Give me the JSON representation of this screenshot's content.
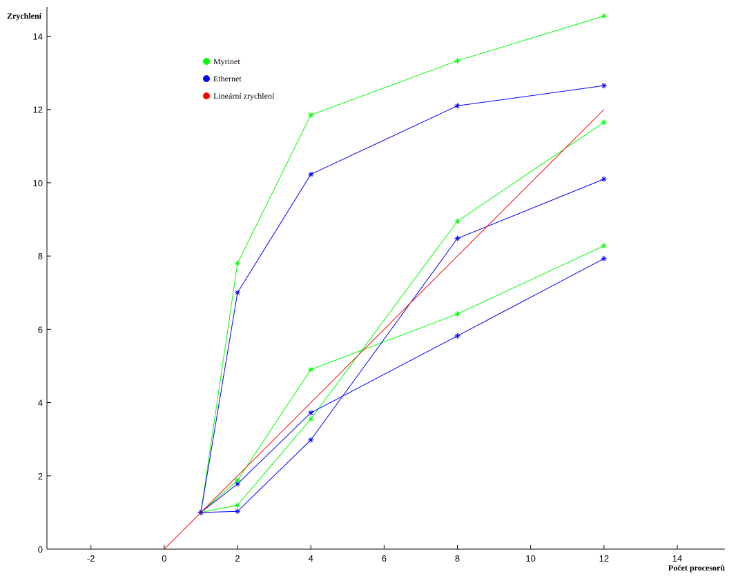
{
  "chart_data": {
    "type": "line",
    "ylabel": "Zrychlení",
    "xlabel": "Počet procesorů",
    "xlim": [
      -3.2,
      15.3
    ],
    "ylim": [
      0,
      14.8
    ],
    "xticks": [
      -2,
      0,
      2,
      4,
      6,
      8,
      10,
      12,
      14
    ],
    "yticks": [
      0,
      2,
      4,
      6,
      8,
      10,
      12,
      14
    ],
    "series": [
      {
        "name": "Myrinet",
        "color": "#00ff00",
        "marker": true,
        "x": [
          1,
          2,
          4,
          8,
          12
        ],
        "lines": [
          [
            1,
            7.8,
            11.85,
            13.33,
            14.55
          ],
          [
            1,
            1.2,
            3.55,
            8.95,
            11.65
          ],
          [
            1,
            1.88,
            4.9,
            6.42,
            8.28
          ]
        ]
      },
      {
        "name": "Ethernet",
        "color": "#0000ff",
        "marker": true,
        "x": [
          1,
          2,
          4,
          8,
          12
        ],
        "lines": [
          [
            1,
            7.0,
            10.23,
            12.1,
            12.65
          ],
          [
            1,
            1.03,
            2.98,
            8.48,
            10.1
          ],
          [
            1,
            1.78,
            3.72,
            5.82,
            7.93
          ]
        ]
      },
      {
        "name": "Lineární zrychlení",
        "color": "#ff0000",
        "marker": false,
        "x": [
          0,
          12
        ],
        "lines": [
          [
            0,
            12
          ]
        ]
      }
    ]
  }
}
